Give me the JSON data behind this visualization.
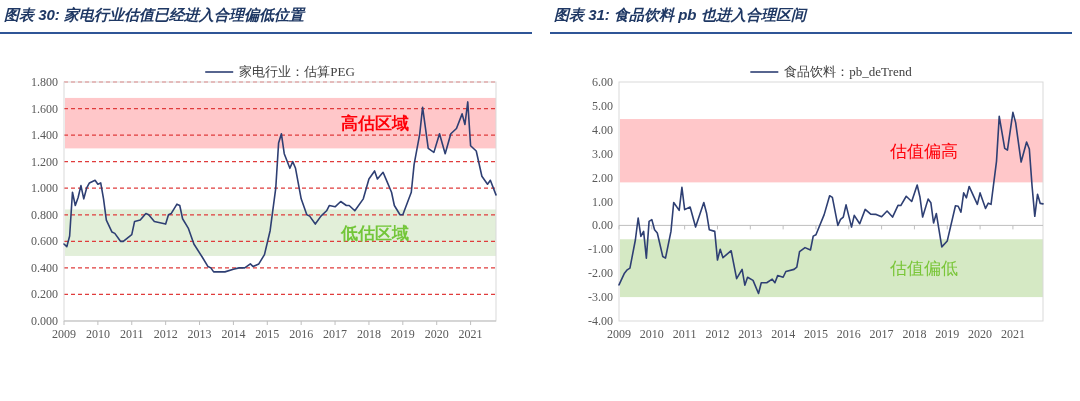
{
  "chart_data": [
    {
      "type": "line",
      "title": "图表 30: 家电行业估值已经进入合理偏低位置",
      "legend": "top",
      "grid": "y",
      "x": [
        "2009-01",
        "2009-02",
        "2009-03",
        "2009-04",
        "2009-05",
        "2009-06",
        "2009-07",
        "2009-08",
        "2009-09",
        "2009-10",
        "2009-12",
        "2010-01",
        "2010-02",
        "2010-03",
        "2010-04",
        "2010-06",
        "2010-07",
        "2010-09",
        "2010-10",
        "2011-01",
        "2011-02",
        "2011-04",
        "2011-06",
        "2011-07",
        "2011-09",
        "2011-11",
        "2012-01",
        "2012-02",
        "2012-03",
        "2012-05",
        "2012-06",
        "2012-07",
        "2012-09",
        "2012-11",
        "2013-02",
        "2013-04",
        "2013-05",
        "2013-06",
        "2013-08",
        "2013-10",
        "2014-01",
        "2014-03",
        "2014-05",
        "2014-07",
        "2014-08",
        "2014-10",
        "2014-12",
        "2015-02",
        "2015-04",
        "2015-05",
        "2015-06",
        "2015-07",
        "2015-09",
        "2015-10",
        "2015-11",
        "2016-01",
        "2016-03",
        "2016-04",
        "2016-06",
        "2016-08",
        "2016-10",
        "2016-11",
        "2017-01",
        "2017-03",
        "2017-05",
        "2017-06",
        "2017-08",
        "2017-11",
        "2018-01",
        "2018-03",
        "2018-04",
        "2018-06",
        "2018-07",
        "2018-09",
        "2018-10",
        "2018-12",
        "2019-01",
        "2019-04",
        "2019-05",
        "2019-07",
        "2019-08",
        "2019-10",
        "2019-12",
        "2020-02",
        "2020-04",
        "2020-06",
        "2020-08",
        "2020-10",
        "2020-11",
        "2020-12",
        "2021-01",
        "2021-03",
        "2021-05",
        "2021-07",
        "2021-08",
        "2021-10"
      ],
      "series": [
        {
          "name": "家电行业：估算PEG",
          "color": "#2e3f73",
          "values": [
            0.58,
            0.56,
            0.64,
            0.97,
            0.87,
            0.93,
            1.02,
            0.92,
            1.0,
            1.04,
            1.06,
            1.03,
            1.04,
            0.92,
            0.76,
            0.67,
            0.66,
            0.6,
            0.6,
            0.65,
            0.75,
            0.76,
            0.81,
            0.8,
            0.75,
            0.74,
            0.73,
            0.8,
            0.81,
            0.88,
            0.87,
            0.77,
            0.7,
            0.58,
            0.48,
            0.41,
            0.4,
            0.37,
            0.37,
            0.37,
            0.39,
            0.4,
            0.4,
            0.43,
            0.41,
            0.43,
            0.5,
            0.68,
            1.0,
            1.34,
            1.41,
            1.26,
            1.15,
            1.2,
            1.15,
            0.92,
            0.8,
            0.79,
            0.73,
            0.79,
            0.83,
            0.87,
            0.86,
            0.9,
            0.87,
            0.87,
            0.83,
            0.92,
            1.07,
            1.13,
            1.07,
            1.12,
            1.07,
            0.97,
            0.87,
            0.8,
            0.8,
            0.97,
            1.18,
            1.41,
            1.61,
            1.3,
            1.27,
            1.41,
            1.26,
            1.41,
            1.45,
            1.56,
            1.48,
            1.65,
            1.32,
            1.28,
            1.09,
            1.03,
            1.06,
            0.95
          ]
        }
      ],
      "xlim": [
        "2009-01",
        "2021-10"
      ],
      "xticks": [
        "2009",
        "2010",
        "2011",
        "2012",
        "2013",
        "2014",
        "2015",
        "2016",
        "2017",
        "2018",
        "2019",
        "2020",
        "2021"
      ],
      "ylim": [
        0,
        1.8
      ],
      "yticks": [
        {
          "value": 0,
          "label": "0.000"
        },
        {
          "value": 0.2,
          "label": "0.200"
        },
        {
          "value": 0.4,
          "label": "0.400"
        },
        {
          "value": 0.6,
          "label": "0.600"
        },
        {
          "value": 0.8,
          "label": "0.800"
        },
        {
          "value": 1,
          "label": "1.000"
        },
        {
          "value": 1.2,
          "label": "1.200"
        },
        {
          "value": 1.4,
          "label": "1.400"
        },
        {
          "value": 1.6,
          "label": "1.600"
        },
        {
          "value": 1.8,
          "label": "1.800"
        }
      ],
      "bands": [
        {
          "axis": "y",
          "from": 1.3,
          "to": 1.68,
          "label": "高估区域",
          "color": "#ffc7c9"
        },
        {
          "axis": "y",
          "from": 0.49,
          "to": 0.84,
          "label": "低估区域",
          "color": "#e2efd9"
        }
      ]
    },
    {
      "type": "line",
      "title": "图表 31: 食品饮料 pb 也进入合理区间",
      "legend": "top",
      "x": [
        "2009-01",
        "2009-03",
        "2009-04",
        "2009-05",
        "2009-07",
        "2009-08",
        "2009-09",
        "2009-10",
        "2009-11",
        "2009-12",
        "2010-01",
        "2010-02",
        "2010-03",
        "2010-05",
        "2010-06",
        "2010-08",
        "2010-09",
        "2010-11",
        "2010-12",
        "2011-01",
        "2011-03",
        "2011-05",
        "2011-08",
        "2011-09",
        "2011-10",
        "2011-12",
        "2012-01",
        "2012-02",
        "2012-03",
        "2012-06",
        "2012-08",
        "2012-10",
        "2012-11",
        "2012-12",
        "2013-02",
        "2013-04",
        "2013-05",
        "2013-07",
        "2013-09",
        "2013-10",
        "2013-11",
        "2014-01",
        "2014-02",
        "2014-05",
        "2014-06",
        "2014-07",
        "2014-09",
        "2014-11",
        "2014-12",
        "2015-01",
        "2015-04",
        "2015-06",
        "2015-07",
        "2015-09",
        "2015-10",
        "2015-11",
        "2015-12",
        "2016-02",
        "2016-03",
        "2016-05",
        "2016-07",
        "2016-09",
        "2016-11",
        "2017-01",
        "2017-03",
        "2017-05",
        "2017-07",
        "2017-08",
        "2017-10",
        "2017-12",
        "2018-02",
        "2018-03",
        "2018-04",
        "2018-06",
        "2018-07",
        "2018-08",
        "2018-09",
        "2018-11",
        "2019-01",
        "2019-04",
        "2019-05",
        "2019-06",
        "2019-07",
        "2019-08",
        "2019-09",
        "2019-12",
        "2020-01",
        "2020-03",
        "2020-04",
        "2020-05",
        "2020-07",
        "2020-08",
        "2020-10",
        "2020-11",
        "2021-01",
        "2021-02",
        "2021-04",
        "2021-06",
        "2021-07",
        "2021-08",
        "2021-09",
        "2021-10",
        "2021-11",
        "2021-12"
      ],
      "series": [
        {
          "name": "食品饮料：pb_deTrend",
          "color": "#2e3f73",
          "values": [
            -2.49,
            -2.0,
            -1.86,
            -1.79,
            -0.6,
            0.31,
            -0.46,
            -0.25,
            -1.37,
            0.17,
            0.24,
            -0.18,
            -0.32,
            -1.3,
            -1.37,
            -0.25,
            0.96,
            0.63,
            1.59,
            0.66,
            0.77,
            -0.07,
            0.96,
            0.52,
            -0.18,
            -0.25,
            -1.45,
            -1.0,
            -1.35,
            -1.06,
            -2.23,
            -1.84,
            -2.5,
            -2.17,
            -2.3,
            -2.85,
            -2.4,
            -2.4,
            -2.25,
            -2.4,
            -2.1,
            -2.17,
            -1.93,
            -1.84,
            -1.75,
            -1.1,
            -0.93,
            -1.03,
            -0.45,
            -0.39,
            0.45,
            1.24,
            1.17,
            0.0,
            0.25,
            0.35,
            0.86,
            -0.07,
            0.42,
            0.07,
            0.67,
            0.47,
            0.46,
            0.36,
            0.6,
            0.35,
            0.84,
            0.83,
            1.22,
            1.0,
            1.69,
            1.2,
            0.35,
            1.1,
            0.95,
            0.1,
            0.5,
            -0.9,
            -0.65,
            0.82,
            0.8,
            0.55,
            1.36,
            1.15,
            1.63,
            0.88,
            1.36,
            0.71,
            0.93,
            0.88,
            2.68,
            4.56,
            3.22,
            3.15,
            4.73,
            4.3,
            2.65,
            3.49,
            3.2,
            1.65,
            0.38,
            1.3,
            0.92,
            0.9
          ]
        }
      ],
      "xlim": [
        "2009-01",
        "2021-12"
      ],
      "xticks": [
        "2009",
        "2010",
        "2011",
        "2012",
        "2013",
        "2014",
        "2015",
        "2016",
        "2017",
        "2018",
        "2019",
        "2020",
        "2021"
      ],
      "ylim": [
        -4,
        6
      ],
      "yticks": [
        {
          "value": -4,
          "label": "-4.00"
        },
        {
          "value": -3,
          "label": "-3.00"
        },
        {
          "value": -2,
          "label": "-2.00"
        },
        {
          "value": -1,
          "label": "-1.00"
        },
        {
          "value": 0,
          "label": "0.00"
        },
        {
          "value": 1,
          "label": "1.00"
        },
        {
          "value": 2,
          "label": "2.00"
        },
        {
          "value": 3,
          "label": "3.00"
        },
        {
          "value": 4,
          "label": "4.00"
        },
        {
          "value": 5,
          "label": "5.00"
        },
        {
          "value": 6,
          "label": "6.00"
        }
      ],
      "bands": [
        {
          "axis": "y",
          "from": 1.8,
          "to": 4.45,
          "label": "估值偏高",
          "color": "#ffc7c9"
        },
        {
          "axis": "y",
          "from": -3.0,
          "to": -0.58,
          "label": "估值偏低",
          "color": "#d5e9c4"
        }
      ]
    }
  ]
}
